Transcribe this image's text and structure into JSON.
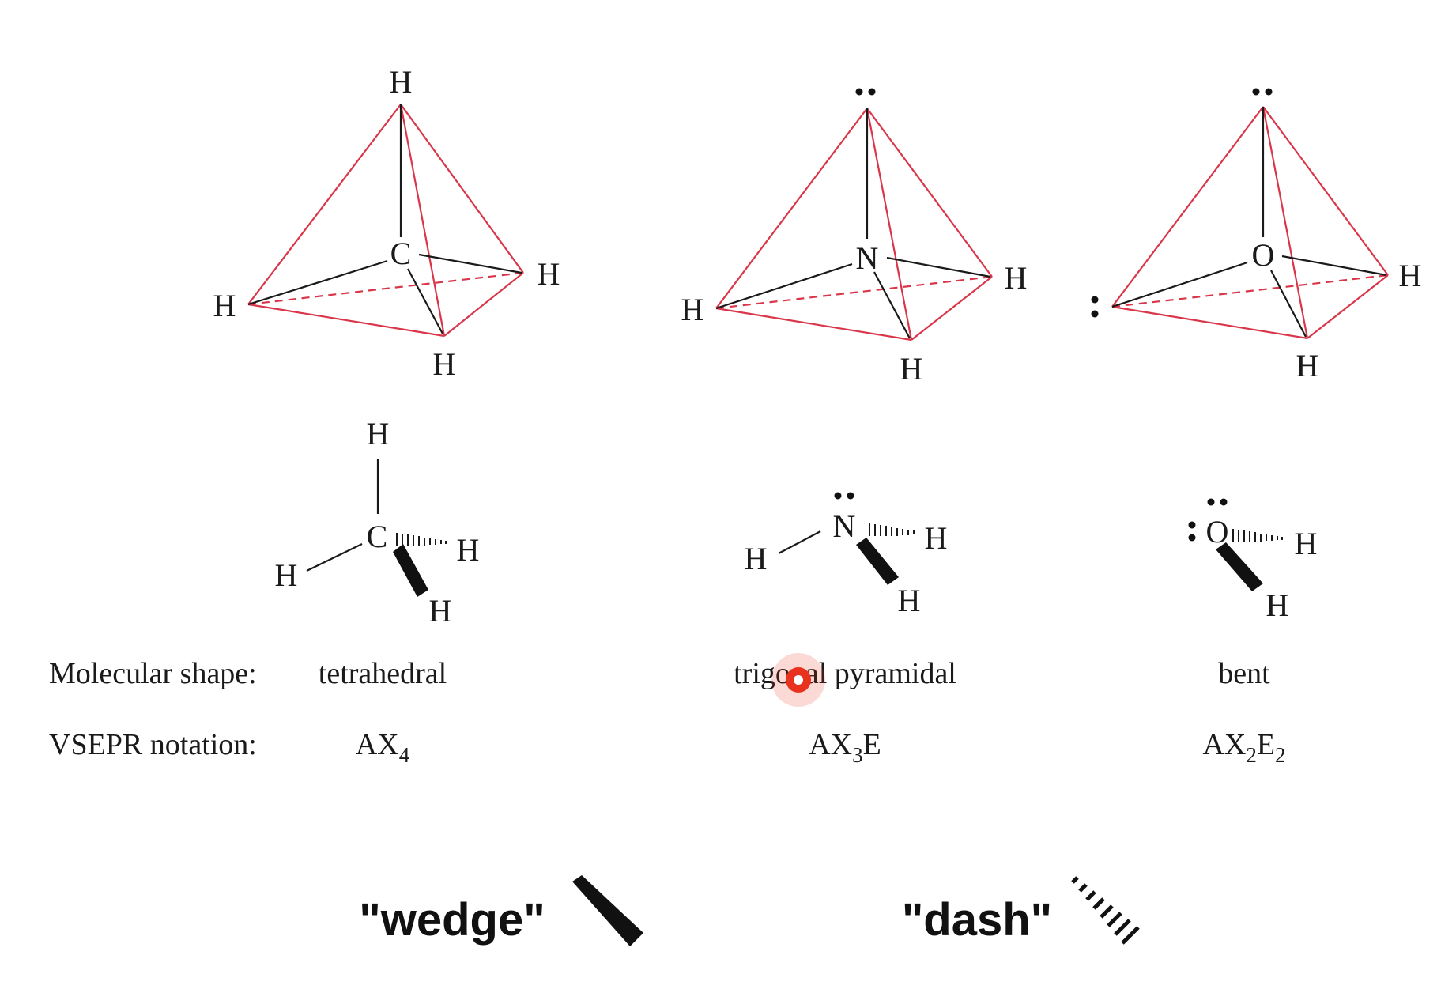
{
  "molecules": [
    {
      "center": "C",
      "substituents": [
        "H",
        "H",
        "H",
        "H"
      ],
      "lone_pairs": 0,
      "shape": "tetrahedral",
      "notation": {
        "base": "AX",
        "x_sub": "4",
        "e": "",
        "e_sub": ""
      }
    },
    {
      "center": "N",
      "substituents": [
        "H",
        "H",
        "H"
      ],
      "lone_pairs": 1,
      "shape": "trigonal pyramidal",
      "notation": {
        "base": "AX",
        "x_sub": "3",
        "e": "E",
        "e_sub": ""
      }
    },
    {
      "center": "O",
      "substituents": [
        "H",
        "H"
      ],
      "lone_pairs": 2,
      "shape": "bent",
      "notation": {
        "base": "AX",
        "x_sub": "2",
        "e": "E",
        "e_sub": "2"
      }
    }
  ],
  "row_labels": {
    "shape": "Molecular shape:",
    "notation": "VSEPR notation:"
  },
  "legend": {
    "wedge": "\"wedge\"",
    "dash": "\"dash\""
  },
  "colors": {
    "tetrahedron_edge": "#d9364a",
    "bond": "#1a1a1a",
    "cursor": "#e8321e"
  }
}
